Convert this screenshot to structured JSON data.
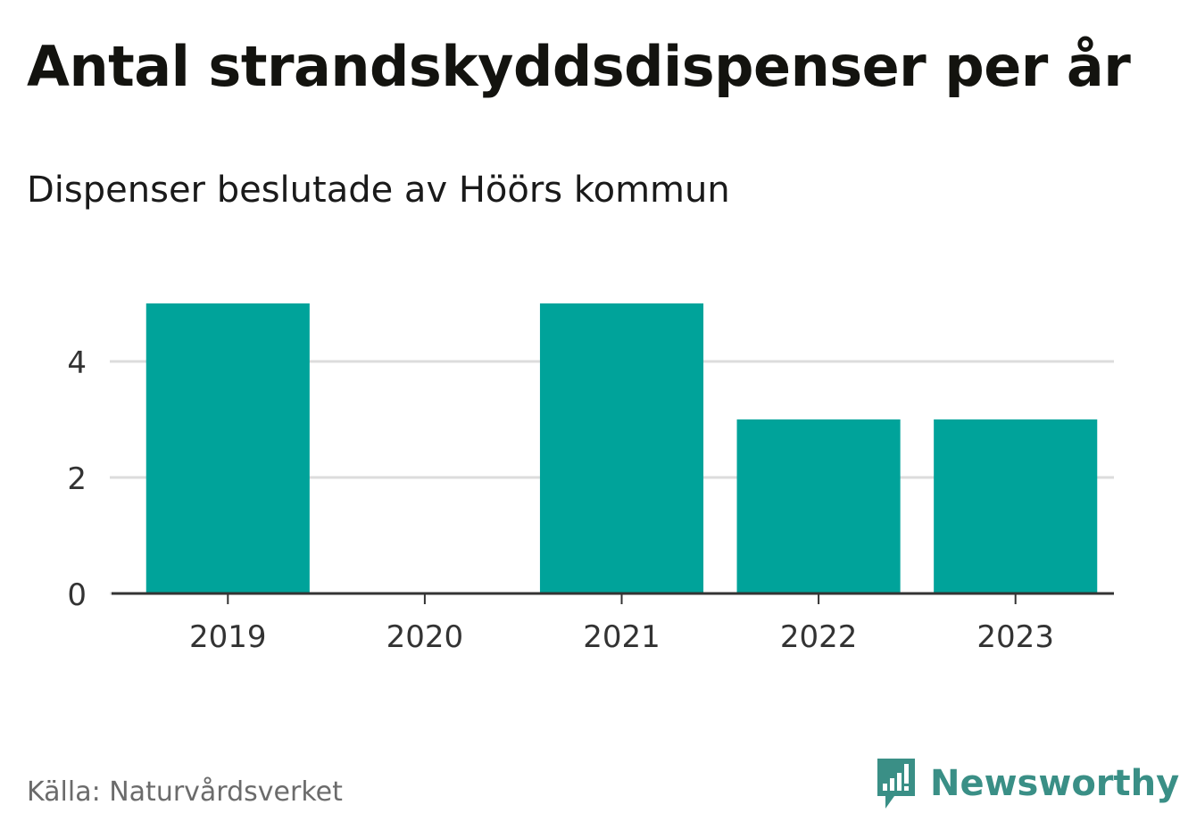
{
  "title": "Antal strandskyddsdispenser per år",
  "subtitle": "Dispenser beslutade av Höörs kommun",
  "source": "Källa: Naturvårdsverket",
  "brand": {
    "name": "Newsworthy",
    "icon": "newsworthy-logo-icon",
    "color": "#3a8f86"
  },
  "chart_data": {
    "type": "bar",
    "title": "Antal strandskyddsdispenser per år",
    "subtitle": "Dispenser beslutade av Höörs kommun",
    "categories": [
      "2019",
      "2020",
      "2021",
      "2022",
      "2023"
    ],
    "values": [
      5,
      0,
      5,
      3,
      3
    ],
    "ylim": [
      0,
      5
    ],
    "yticks": [
      "0",
      "2",
      "4"
    ],
    "grid": true,
    "legend": "none",
    "bar_color": "#00a39a"
  }
}
